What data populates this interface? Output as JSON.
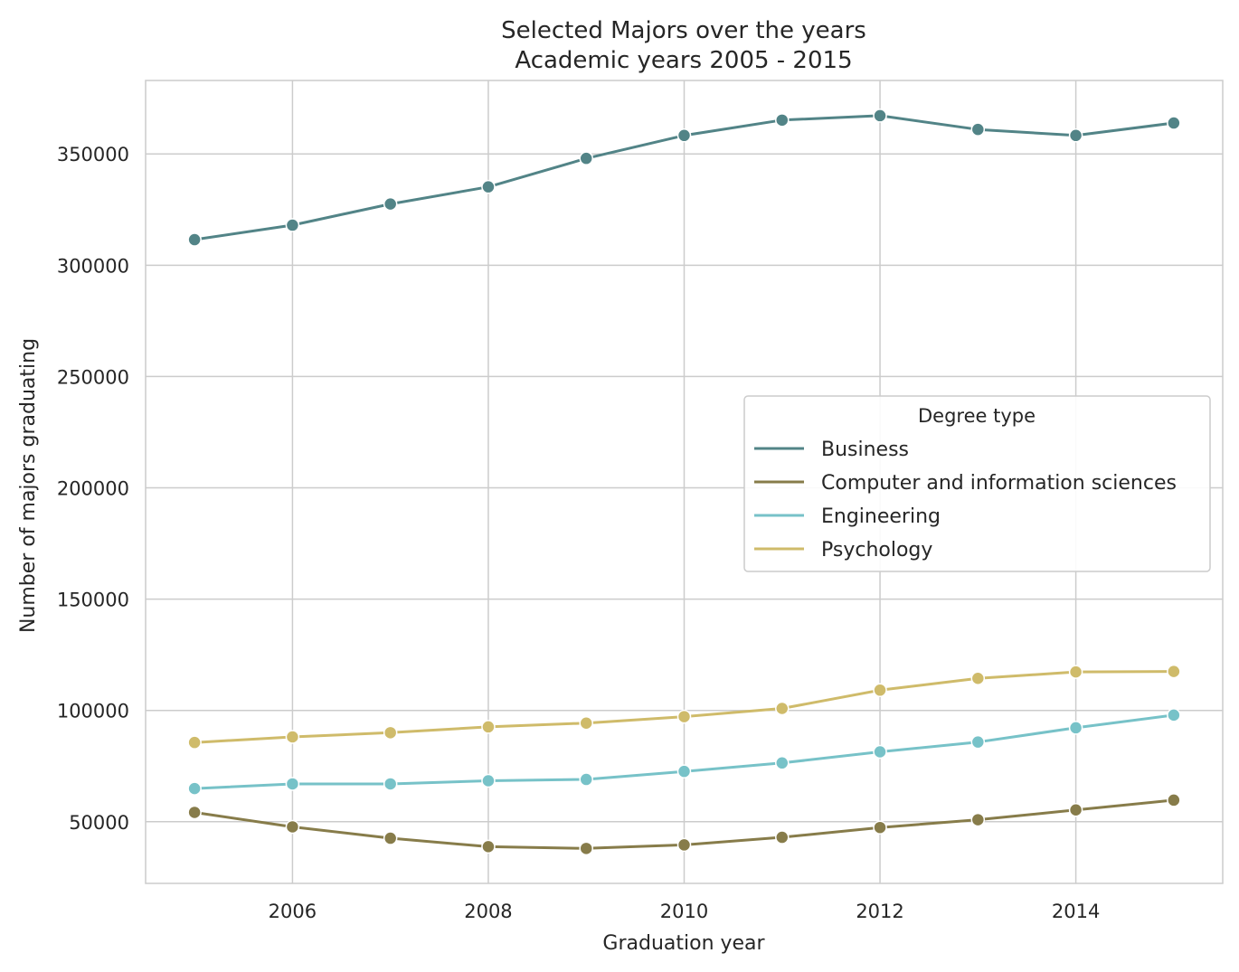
{
  "chart_data": {
    "type": "line",
    "title": "Selected Majors over the years",
    "subtitle": "Academic years 2005 - 2015",
    "xlabel": "Graduation year",
    "ylabel": "Number of majors graduating",
    "x": [
      2005,
      2006,
      2007,
      2008,
      2009,
      2010,
      2011,
      2012,
      2013,
      2014,
      2015
    ],
    "xlim": [
      2004.5,
      2015.5
    ],
    "ylim": [
      22300,
      383000
    ],
    "xticks": [
      2006,
      2008,
      2010,
      2012,
      2014
    ],
    "yticks": [
      50000,
      100000,
      150000,
      200000,
      250000,
      300000,
      350000
    ],
    "xtick_labels": [
      "2006",
      "2008",
      "2010",
      "2012",
      "2014"
    ],
    "ytick_labels": [
      "50000",
      "100000",
      "150000",
      "200000",
      "250000",
      "300000",
      "350000"
    ],
    "grid": true,
    "legend": {
      "title": "Degree type",
      "placement": "center-right"
    },
    "series": [
      {
        "name": "Business",
        "color": "#528487",
        "values": [
          311500,
          318000,
          327500,
          335200,
          348000,
          358300,
          365200,
          367200,
          361000,
          358300,
          363900
        ]
      },
      {
        "name": "Computer and information sciences",
        "color": "#877c4a",
        "values": [
          54200,
          47700,
          42600,
          38800,
          38000,
          39600,
          43000,
          47400,
          50900,
          55300,
          59700
        ]
      },
      {
        "name": "Engineering",
        "color": "#77c2c8",
        "values": [
          64900,
          67000,
          67000,
          68400,
          69000,
          72600,
          76400,
          81400,
          85800,
          92200,
          97900
        ]
      },
      {
        "name": "Psychology",
        "color": "#cfbb6a",
        "values": [
          85600,
          88100,
          90000,
          92600,
          94300,
          97200,
          100900,
          109100,
          114400,
          117300,
          117500
        ]
      }
    ]
  }
}
